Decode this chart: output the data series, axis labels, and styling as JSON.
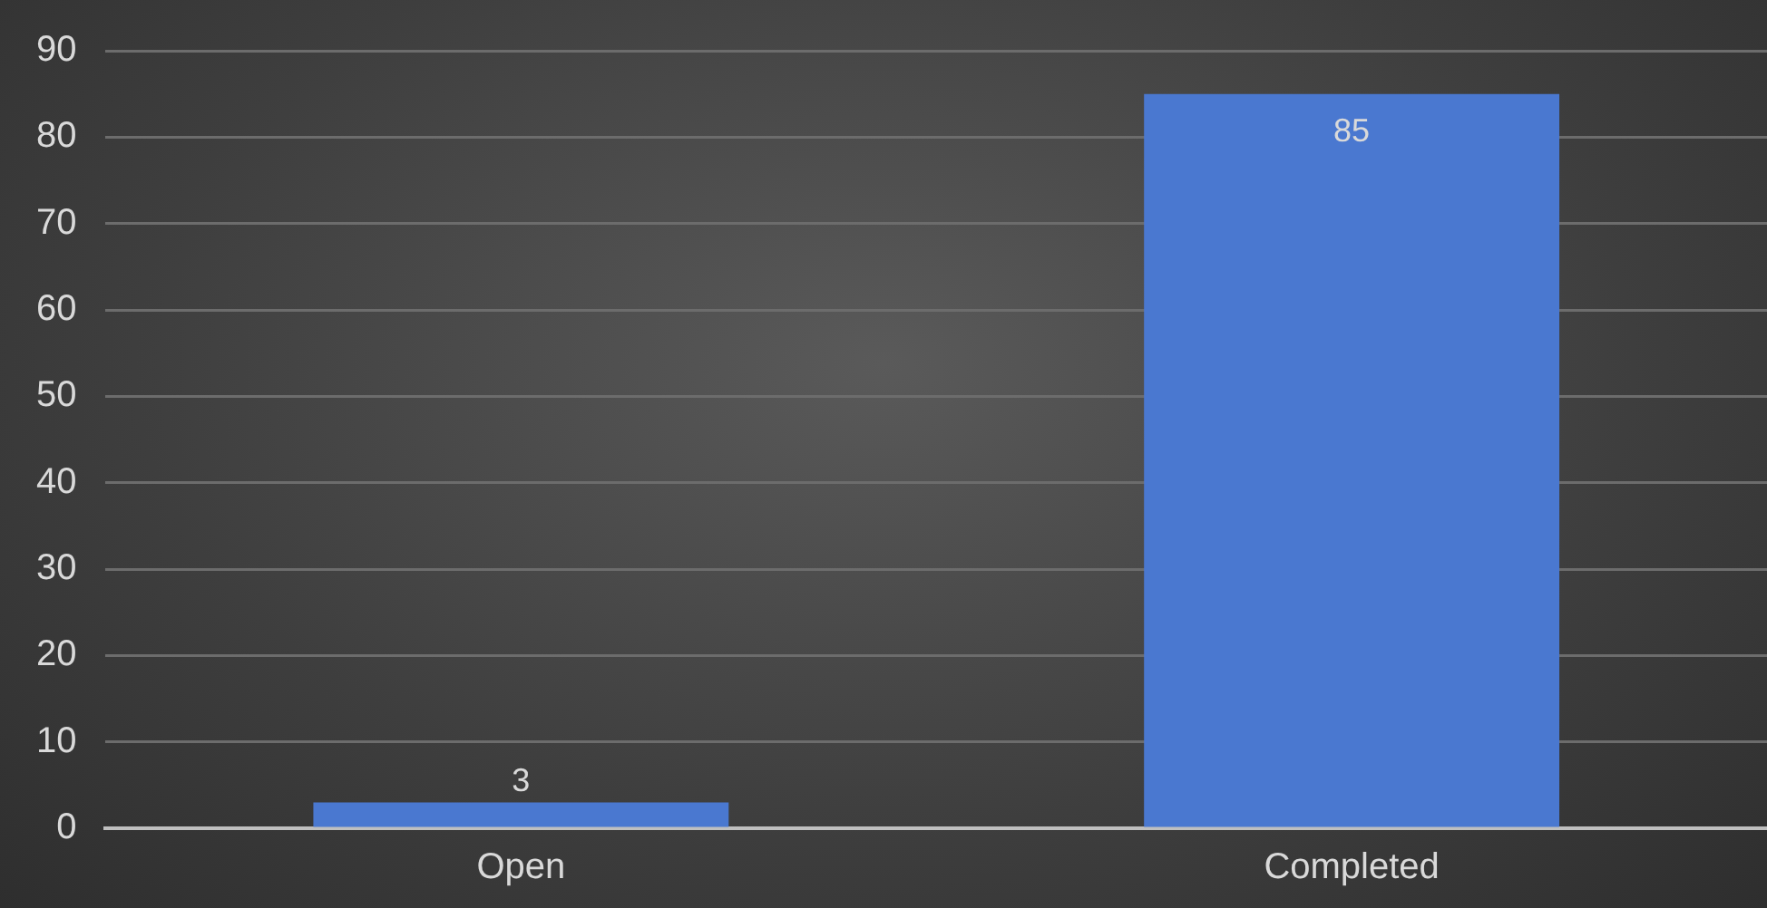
{
  "chart_data": {
    "type": "bar",
    "categories": [
      "Open",
      "Completed"
    ],
    "values": [
      3,
      85
    ],
    "color": "#4a78d0",
    "ylim": [
      0,
      90
    ],
    "yticks": [
      0,
      10,
      20,
      30,
      40,
      50,
      60,
      70,
      80,
      90
    ],
    "grid": "y",
    "data_labels": true,
    "legend": false
  }
}
